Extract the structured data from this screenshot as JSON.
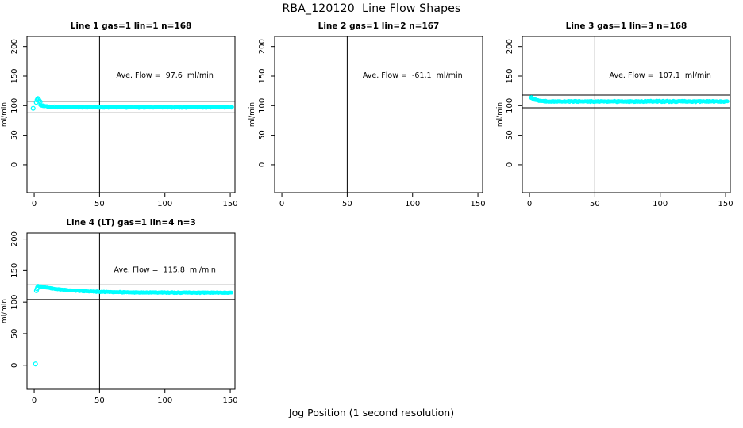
{
  "figure": {
    "main_title": "RBA_120120  Line Flow Shapes",
    "x_axis_label": "Jog Position (1 second resolution)",
    "background": "#ffffff",
    "frame_color": "#000000",
    "marker_color": "#00ffff"
  },
  "chart_data": {
    "type": "scatter",
    "layout": "2x3 panel grid, 4 panels used (top row: 3, bottom-left: 1)",
    "legend": "none",
    "grid": "off",
    "shared": {
      "xticks": [
        0,
        50,
        100,
        150
      ],
      "yticks": [
        0,
        50,
        100,
        150,
        200
      ],
      "ylabel": "ml/min",
      "vline_x": 50,
      "marker": "open-circle",
      "marker_color": "#00ffff"
    },
    "plots": [
      {
        "title": "Line 1 gas=1 lin=1 n=168",
        "annotation": "Ave. Flow =  97.6  ml/min",
        "ave_flow": 97.6,
        "n": 168,
        "hlines": [
          107.4,
          87.8
        ],
        "xlim": [
          -5.5,
          153.6
        ],
        "ylim": [
          -47,
          217
        ],
        "annotation_pos": [
          100,
          152
        ],
        "series": {
          "x_start": 4.5,
          "x_end": 151.5,
          "count": 310,
          "y_start": 100.5,
          "y_settle": 97.4,
          "tau": 5,
          "jitter": 1.5
        },
        "extra_points": [
          [
            -0.8,
            95.5
          ],
          [
            1.6,
            105.5
          ],
          [
            2.2,
            109.5
          ],
          [
            2.8,
            112
          ],
          [
            3.4,
            110.5
          ],
          [
            4.0,
            108
          ],
          [
            4.6,
            106.5
          ]
        ]
      },
      {
        "title": "Line 2 gas=1 lin=2 n=167",
        "annotation": "Ave. Flow =  -61.1  ml/min",
        "ave_flow": -61.1,
        "n": 167,
        "hlines": [],
        "xlim": [
          -5.5,
          153.6
        ],
        "ylim": [
          -47,
          217
        ],
        "annotation_pos": [
          100,
          152
        ],
        "series": null,
        "extra_points": []
      },
      {
        "title": "Line 3 gas=1 lin=3 n=168",
        "annotation": "Ave. Flow =  107.1  ml/min",
        "ave_flow": 107.1,
        "n": 168,
        "hlines": [
          117.8,
          96.4
        ],
        "xlim": [
          -5.5,
          153.6
        ],
        "ylim": [
          -47,
          217
        ],
        "annotation_pos": [
          100,
          152
        ],
        "series": {
          "x_start": 1.5,
          "x_end": 151.5,
          "count": 320,
          "y_start": 113,
          "y_settle": 107.1,
          "tau": 3.5,
          "jitter": 1.5
        },
        "extra_points": [
          [
            1.5,
            113.5
          ]
        ]
      },
      {
        "title": "Line 4 (LT) gas=1 lin=4 n=3",
        "annotation": "Ave. Flow =  115.8  ml/min",
        "ave_flow": 115.8,
        "n": 3,
        "hlines": [
          127.4,
          104.2
        ],
        "xlim": [
          -5.5,
          153.6
        ],
        "ylim": [
          -38,
          209.5
        ],
        "annotation_pos": [
          100,
          152
        ],
        "series": {
          "x_start": 3,
          "x_end": 151,
          "count": 320,
          "y_start": 125.6,
          "y_settle": 114.9,
          "tau": 24,
          "jitter": 0.9
        },
        "extra_points": [
          [
            1,
            2
          ],
          [
            1.7,
            118
          ],
          [
            2.2,
            121
          ],
          [
            2.6,
            123.5
          ]
        ]
      }
    ]
  }
}
